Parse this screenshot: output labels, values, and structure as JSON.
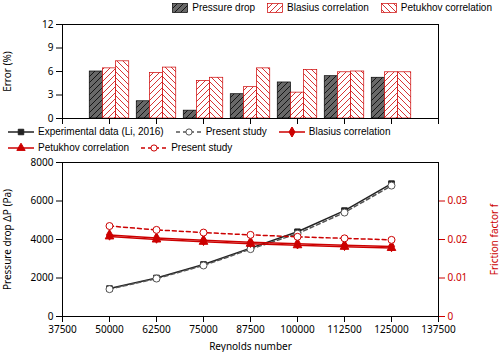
{
  "chart_data": [
    {
      "type": "bar",
      "x": [
        50000,
        62500,
        75000,
        87500,
        100000,
        112500,
        125000
      ],
      "xlim": [
        37500,
        137500
      ],
      "xticks": [
        37500,
        50000,
        62500,
        75000,
        87500,
        100000,
        112500,
        125000,
        137500
      ],
      "ylabel": "Error (%)",
      "ylim": [
        0,
        12
      ],
      "yticks": [
        0,
        3,
        6,
        9,
        12
      ],
      "tick_labels": "y",
      "grid": false,
      "legend": "upper right",
      "series": [
        {
          "name": "Pressure drop",
          "color": "#686868",
          "values": [
            6.0,
            2.2,
            1.0,
            3.1,
            4.6,
            5.4,
            5.2
          ]
        },
        {
          "name": "Blasius correlation",
          "color": "#cc0000",
          "values": [
            6.4,
            5.8,
            4.8,
            4.0,
            3.3,
            5.9,
            5.9
          ]
        },
        {
          "name": "Petukhov correlation",
          "color": "#cc0000",
          "values": [
            7.3,
            6.5,
            5.2,
            6.4,
            6.2,
            6.0,
            5.9
          ]
        }
      ]
    },
    {
      "type": "line",
      "x": [
        50000,
        62500,
        75000,
        87500,
        100000,
        112500,
        125000
      ],
      "xlabel": "Reynolds number",
      "xlim": [
        37500,
        137500
      ],
      "xticks": [
        37500,
        50000,
        62500,
        75000,
        87500,
        100000,
        112500,
        125000,
        137500
      ],
      "ylabel": "Pressure drop ΔP (Pa)",
      "ylim": [
        0,
        8000
      ],
      "yticks": [
        0,
        2000,
        4000,
        6000,
        8000
      ],
      "y2label": "Friction factor f",
      "y2lim": [
        0,
        0.04
      ],
      "y2ticks": [
        0,
        0.01,
        0.02,
        0.03
      ],
      "grid": false,
      "legend": "upper left",
      "series": [
        {
          "name": "Experimental data (Li, 2016)",
          "color": "#222222",
          "marker": "square",
          "line_style": "solid",
          "values": [
            1450,
            2000,
            2700,
            3550,
            4400,
            5500,
            6900
          ]
        },
        {
          "name": "Present study",
          "color": "#555555",
          "marker": "circle-open",
          "line_style": "dashed",
          "values": [
            1420,
            1970,
            2650,
            3500,
            4300,
            5400,
            6800
          ]
        },
        {
          "name": "Blasius correlation",
          "color": "#cc0000",
          "marker": "diamond",
          "line_style": "solid",
          "axis": "y2",
          "values": [
            0.0212,
            0.0204,
            0.0198,
            0.0193,
            0.0189,
            0.0185,
            0.0182
          ]
        },
        {
          "name": "Petukhov correlation",
          "color": "#cc0000",
          "marker": "triangle",
          "line_style": "solid",
          "axis": "y2",
          "values": [
            0.0208,
            0.02,
            0.0194,
            0.0189,
            0.0185,
            0.0181,
            0.0178
          ]
        },
        {
          "name": "Present study",
          "color": "#cc0000",
          "marker": "circle-open",
          "line_style": "dashed",
          "axis": "y2",
          "values": [
            0.0235,
            0.0225,
            0.0218,
            0.0212,
            0.0207,
            0.0203,
            0.0199
          ]
        }
      ]
    }
  ]
}
